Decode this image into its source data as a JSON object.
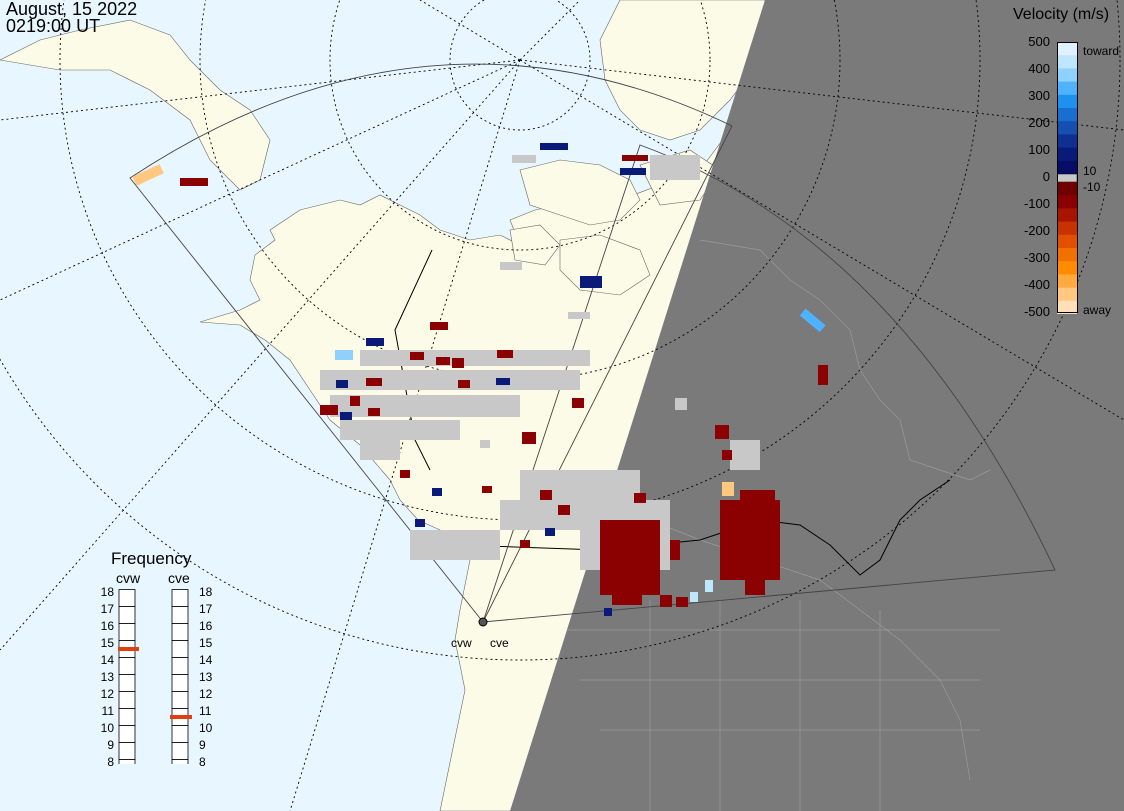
{
  "header": {
    "date": "August, 15 2022",
    "time": "0219:00 UT"
  },
  "colorbar": {
    "title": "Velocity (m/s)",
    "ticks": [
      "500",
      "400",
      "300",
      "200",
      "100",
      "0",
      "-100",
      "-200",
      "-300",
      "-400",
      "-500"
    ],
    "side_labels": {
      "toward": "toward",
      "plus10": "10",
      "minus10": "-10",
      "away": "away"
    },
    "toward_colors": [
      "#dff2ff",
      "#bfe6ff",
      "#8fd0ff",
      "#4fb2ff",
      "#1e90f0",
      "#1a6ed0",
      "#154fb0",
      "#0f3090",
      "#0a1a78",
      "#050d66"
    ],
    "away_colors": [
      "#6f0000",
      "#8a0000",
      "#a81400",
      "#c83200",
      "#e05000",
      "#f07000",
      "#ff8c00",
      "#ffaa40",
      "#ffc880",
      "#ffe0b8"
    ],
    "colors": {
      "toward_strong": "#0a1a78",
      "away_strong": "#8b0000",
      "ground_scatter": "#c8c8c8",
      "night": "#7a7a7a",
      "land": "#fbfbe8",
      "ocean": "#e8f6ff"
    }
  },
  "frequency": {
    "title": "Frequency",
    "radars": [
      {
        "name": "cvw",
        "selected": 15
      },
      {
        "name": "cve",
        "selected": 11
      }
    ],
    "scale": [
      "18",
      "17",
      "16",
      "15",
      "14",
      "13",
      "12",
      "11",
      "10",
      "9",
      "8"
    ]
  },
  "radar_sites": [
    "cvw",
    "cve"
  ]
}
